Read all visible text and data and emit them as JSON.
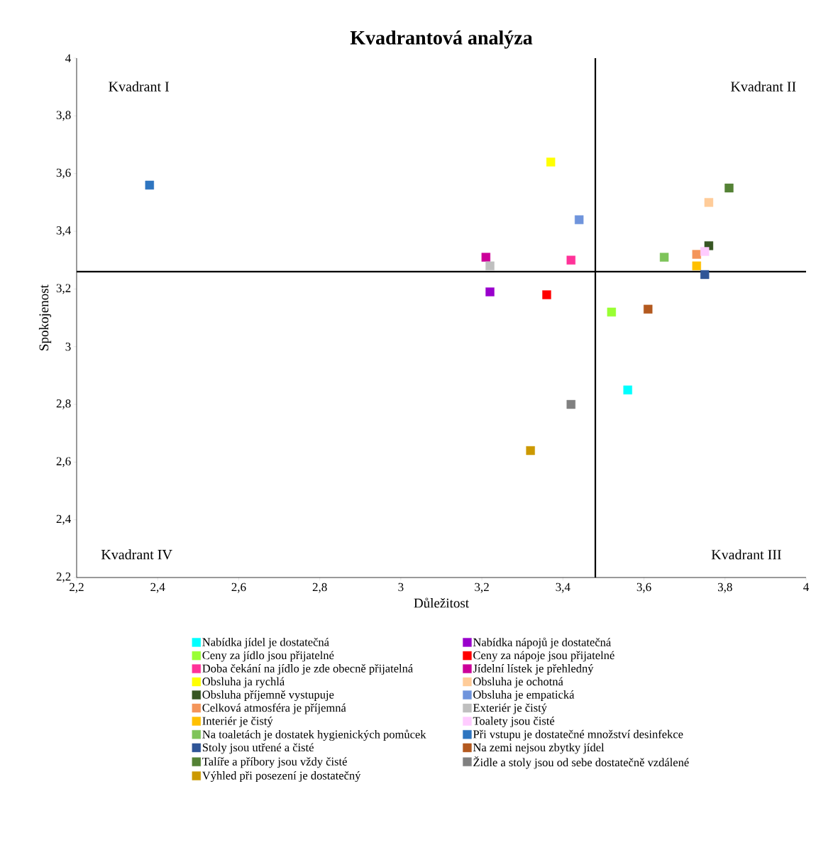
{
  "chart_data": {
    "type": "scatter",
    "title": "Kvadrantová analýza",
    "xlabel": "Důležitost",
    "ylabel": "Spokojenost",
    "xlim": [
      2.2,
      4
    ],
    "ylim": [
      2.2,
      4
    ],
    "xticks": [
      {
        "value": 2.2,
        "label": "2,2"
      },
      {
        "value": 2.4,
        "label": "2,4"
      },
      {
        "value": 2.6,
        "label": "2,6"
      },
      {
        "value": 2.8,
        "label": "2,8"
      },
      3,
      {
        "value": 3.2,
        "label": "3,2"
      },
      {
        "value": 3.4,
        "label": "3,4"
      },
      {
        "value": 3.6,
        "label": "3,6"
      },
      {
        "value": 3.8,
        "label": "3,8"
      },
      4
    ],
    "yticks": [
      {
        "value": 2.2,
        "label": "2,2"
      },
      {
        "value": 2.4,
        "label": "2,4"
      },
      {
        "value": 2.6,
        "label": "2,6"
      },
      {
        "value": 2.8,
        "label": "2,8"
      },
      3,
      {
        "value": 3.2,
        "label": "3,2"
      },
      {
        "value": 3.4,
        "label": "3,4"
      },
      {
        "value": 3.6,
        "label": "3,6"
      },
      {
        "value": 3.8,
        "label": "3,8"
      },
      4
    ],
    "marker": "square",
    "legend": "bottom",
    "grid": false,
    "ref_lines": [
      {
        "axis": "x",
        "value": 3.48,
        "color": "#000000"
      },
      {
        "axis": "y",
        "value": 3.26,
        "color": "#000000"
      }
    ],
    "annotations": [
      "Kvadrant I",
      "Kvadrant II",
      "Kvadrant III",
      "Kvadrant IV"
    ],
    "series": [
      {
        "name": "Nabídka jídel je dostatečná",
        "color": "#00ffff",
        "x": [
          3.56
        ],
        "values": [
          2.85
        ]
      },
      {
        "name": "Nabídka nápojů je dostatečná",
        "color": "#9900cc",
        "x": [
          3.22
        ],
        "values": [
          3.19
        ]
      },
      {
        "name": "Ceny za jídlo jsou přijatelné",
        "color": "#99ff33",
        "x": [
          3.52
        ],
        "values": [
          3.12
        ]
      },
      {
        "name": "Ceny za nápoje jsou přijatelné",
        "color": "#ff0000",
        "x": [
          3.36
        ],
        "values": [
          3.18
        ]
      },
      {
        "name": "Doba čekání na jídlo je zde obecně přijatelná",
        "color": "#ff3399",
        "x": [
          3.42
        ],
        "values": [
          3.3
        ]
      },
      {
        "name": "Jídelní lístek je přehledný",
        "color": "#cc0099",
        "x": [
          3.21
        ],
        "values": [
          3.31
        ]
      },
      {
        "name": "Obsluha ja rychlá",
        "color": "#ffff00",
        "x": [
          3.37
        ],
        "values": [
          3.64
        ]
      },
      {
        "name": "Obsluha je ochotná",
        "color": "#ffcc99",
        "x": [
          3.76
        ],
        "values": [
          3.5
        ]
      },
      {
        "name": "Obsluha příjemně vystupuje",
        "color": "#375623",
        "x": [
          3.76
        ],
        "values": [
          3.35
        ]
      },
      {
        "name": "Obsluha je empatická",
        "color": "#6f94dc",
        "x": [
          3.44
        ],
        "values": [
          3.44
        ]
      },
      {
        "name": "Celková atmosféra je příjemná",
        "color": "#f4955a",
        "x": [
          3.73
        ],
        "values": [
          3.32
        ]
      },
      {
        "name": "Exteriér je čistý",
        "color": "#bfbfbf",
        "x": [
          3.22
        ],
        "values": [
          3.28
        ]
      },
      {
        "name": "Interiér je čistý",
        "color": "#ffc000",
        "x": [
          3.73
        ],
        "values": [
          3.28
        ]
      },
      {
        "name": "Toalety jsou čisté",
        "color": "#ffccff",
        "x": [
          3.75
        ],
        "values": [
          3.33
        ]
      },
      {
        "name": "Na toaletách je dostatek hygienických pomůcek",
        "color": "#7ec45a",
        "x": [
          3.65
        ],
        "values": [
          3.31
        ]
      },
      {
        "name": "Při vstupu je dostatečné množství desinfekce",
        "color": "#2e75c0",
        "x": [
          2.38
        ],
        "values": [
          3.56
        ]
      },
      {
        "name": "Stoly jsou utřené a čisté",
        "color": "#2f5597",
        "x": [
          3.75
        ],
        "values": [
          3.25
        ]
      },
      {
        "name": "Na zemi nejsou zbytky jídel",
        "color": "#b3591f",
        "x": [
          3.61
        ],
        "values": [
          3.13
        ]
      },
      {
        "name": "Talíře a příbory jsou vždy čisté",
        "color": "#548235",
        "x": [
          3.81
        ],
        "values": [
          3.55
        ]
      },
      {
        "name": "Židle a stoly jsou od sebe dostatečně vzdálené",
        "color": "#808080",
        "x": [
          3.42
        ],
        "values": [
          2.8
        ]
      },
      {
        "name": "Výhled při posezení je dostatečný",
        "color": "#cc9900",
        "x": [
          3.32
        ],
        "values": [
          2.64
        ]
      }
    ]
  }
}
